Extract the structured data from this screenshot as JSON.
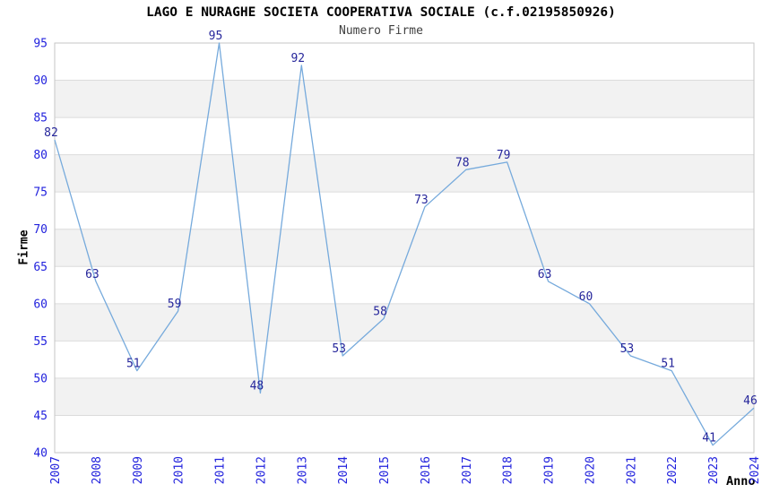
{
  "chart_data": {
    "type": "line",
    "title": "LAGO E NURAGHE SOCIETA COOPERATIVA SOCIALE (c.f.02195850926)",
    "subtitle": "Numero Firme",
    "xlabel": "Anno",
    "ylabel": "Firme",
    "x": [
      "2007",
      "2008",
      "2009",
      "2010",
      "2011",
      "2012",
      "2013",
      "2014",
      "2015",
      "2016",
      "2017",
      "2018",
      "2019",
      "2020",
      "2021",
      "2022",
      "2023",
      "2024"
    ],
    "series": [
      {
        "name": "Numero Firme",
        "values": [
          82,
          63,
          51,
          59,
          95,
          48,
          92,
          53,
          58,
          73,
          78,
          79,
          63,
          60,
          53,
          51,
          41,
          46
        ]
      }
    ],
    "ylim": [
      40,
      95
    ],
    "ytick_step": 5,
    "yticks": [
      40,
      45,
      50,
      55,
      60,
      65,
      70,
      75,
      80,
      85,
      90,
      95
    ],
    "grid": "horizontal",
    "alternating_bands": true,
    "legend": "none",
    "data_labels": true,
    "colors": {
      "line": "#76aadc",
      "data_label": "#26269b",
      "tick_label": "#2222dd",
      "band": "#f2f2f2",
      "grid_line": "#dcdcdc",
      "plot_border": "#c6c6c6",
      "title": "#000000",
      "subtitle": "#404040",
      "axis_title": "#000000"
    }
  }
}
